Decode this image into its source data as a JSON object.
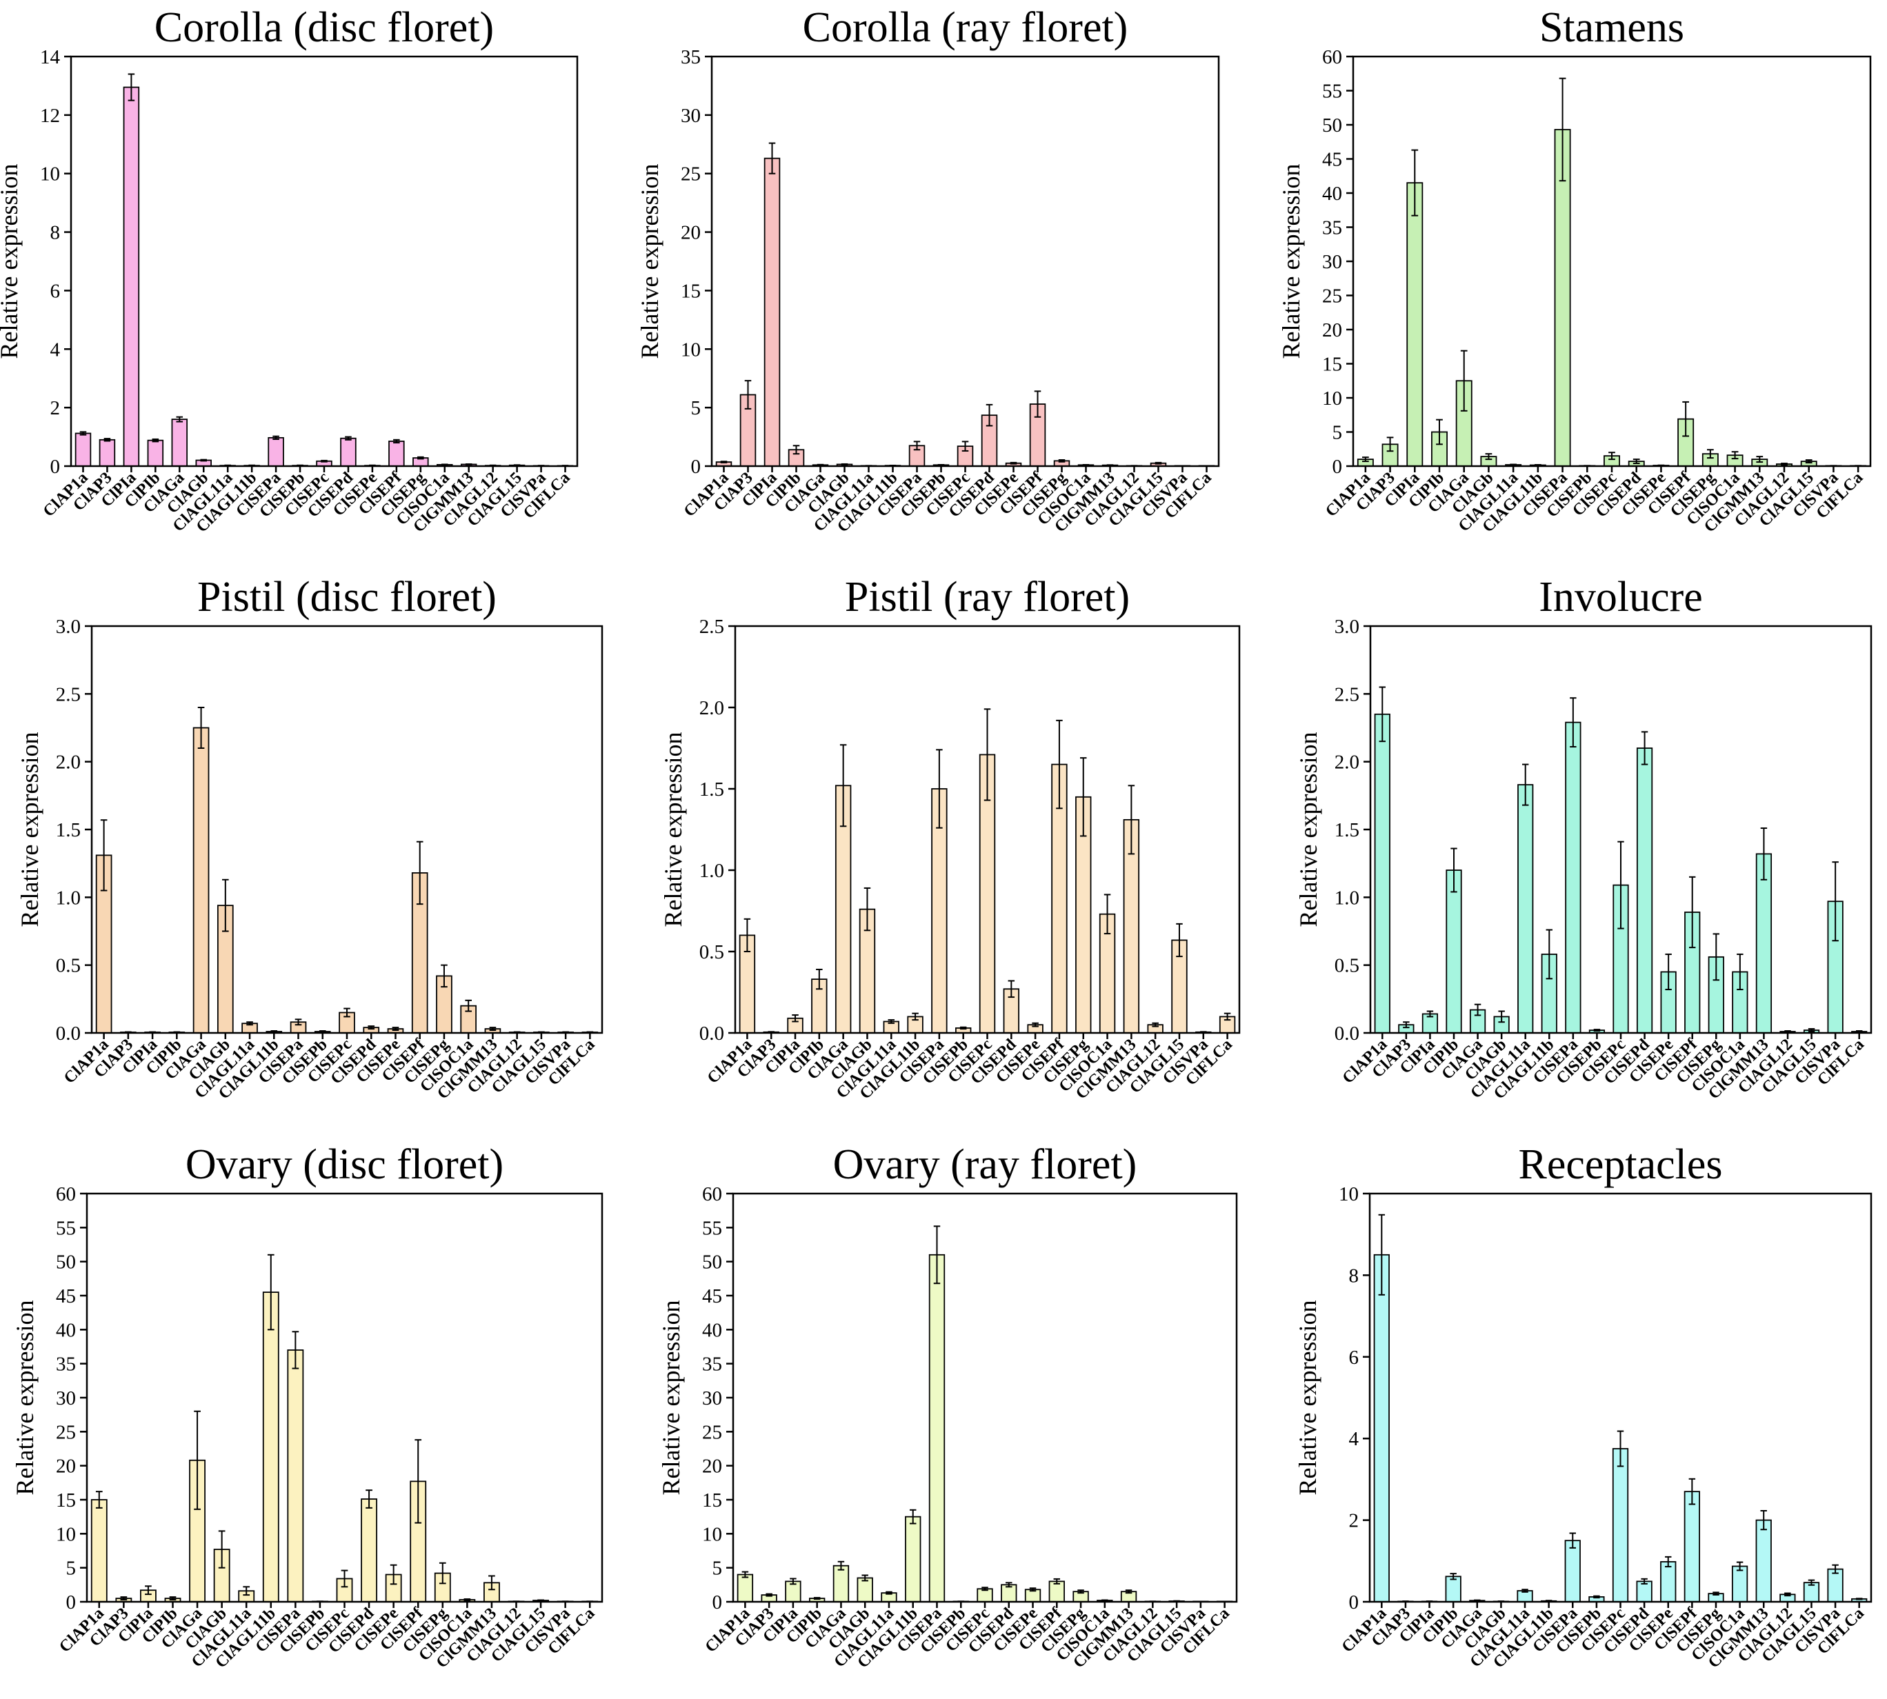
{
  "chart_data": [
    {
      "type": "bar",
      "title": "Corolla (disc floret)",
      "ylabel": "Relative expression",
      "xlabel": "",
      "color": "#f9b3e6",
      "ylim": [
        0,
        14
      ],
      "yticks": [
        0,
        2,
        4,
        6,
        8,
        10,
        12,
        14
      ],
      "categories": [
        "ClAP1a",
        "ClAP3",
        "ClPIa",
        "ClPIb",
        "ClAGa",
        "ClAGb",
        "ClAGL11a",
        "ClAGL11b",
        "ClSEPa",
        "ClSEPb",
        "ClSEPc",
        "ClSEPd",
        "ClSEPe",
        "ClSEPf",
        "ClSEPg",
        "ClSOC1a",
        "ClGMM13",
        "ClAGL12",
        "ClAGL15",
        "ClSVPa",
        "ClFLCa"
      ],
      "values": [
        1.12,
        0.9,
        12.95,
        0.88,
        1.6,
        0.2,
        0.02,
        0.02,
        0.97,
        0.02,
        0.17,
        0.95,
        0.02,
        0.85,
        0.28,
        0.05,
        0.06,
        0.02,
        0.03,
        0.01,
        0.01
      ],
      "errors": [
        0.05,
        0.04,
        0.45,
        0.04,
        0.08,
        0.02,
        0.01,
        0.01,
        0.05,
        0.01,
        0.02,
        0.05,
        0.01,
        0.05,
        0.03,
        0.01,
        0.01,
        0.01,
        0.01,
        0.01,
        0.01
      ]
    },
    {
      "type": "bar",
      "title": "Corolla (ray floret)",
      "ylabel": "Relative expression",
      "xlabel": "",
      "color": "#f8c1c1",
      "ylim": [
        0,
        35
      ],
      "yticks": [
        0,
        5,
        10,
        15,
        20,
        25,
        30,
        35
      ],
      "categories": [
        "ClAP1a",
        "ClAP3",
        "ClPIa",
        "ClPIb",
        "ClAGa",
        "ClAGb",
        "ClAGL11a",
        "ClAGL11b",
        "ClSEPa",
        "ClSEPb",
        "ClSEPc",
        "ClSEPd",
        "ClSEPe",
        "ClSEPf",
        "ClSEPg",
        "ClSOC1a",
        "ClGMM13",
        "ClAGL12",
        "ClAGL15",
        "ClSVPa",
        "ClFLCa"
      ],
      "values": [
        0.35,
        6.1,
        26.3,
        1.4,
        0.1,
        0.15,
        0.03,
        0.05,
        1.75,
        0.1,
        1.7,
        4.35,
        0.25,
        5.3,
        0.45,
        0.1,
        0.08,
        0.03,
        0.25,
        0.02,
        0.02
      ],
      "errors": [
        0.05,
        1.2,
        1.3,
        0.35,
        0.03,
        0.03,
        0.01,
        0.01,
        0.35,
        0.02,
        0.4,
        0.9,
        0.05,
        1.1,
        0.08,
        0.02,
        0.02,
        0.01,
        0.05,
        0.01,
        0.01
      ]
    },
    {
      "type": "bar",
      "title": "Stamens",
      "ylabel": "Relative expression",
      "xlabel": "",
      "color": "#c6f0b4",
      "ylim": [
        0,
        60
      ],
      "yticks": [
        0,
        5,
        10,
        15,
        20,
        25,
        30,
        35,
        40,
        45,
        50,
        55,
        60
      ],
      "categories": [
        "ClAP1a",
        "ClAP3",
        "ClPIa",
        "ClPIb",
        "ClAGa",
        "ClAGb",
        "ClAGL11a",
        "ClAGL11b",
        "ClSEPa",
        "ClSEPb",
        "ClSEPc",
        "ClSEPd",
        "ClSEPe",
        "ClSEPf",
        "ClSEPg",
        "ClSOC1a",
        "ClGMM13",
        "ClAGL12",
        "ClAGL15",
        "ClSVPa",
        "ClFLCa"
      ],
      "values": [
        1.0,
        3.2,
        41.5,
        5.0,
        12.5,
        1.4,
        0.2,
        0.15,
        49.3,
        0.05,
        1.5,
        0.7,
        0.1,
        6.9,
        1.8,
        1.6,
        1.0,
        0.3,
        0.7,
        0.05,
        0.05
      ],
      "errors": [
        0.3,
        1.0,
        4.8,
        1.8,
        4.4,
        0.4,
        0.05,
        0.05,
        7.5,
        0.02,
        0.5,
        0.3,
        0.03,
        2.5,
        0.6,
        0.5,
        0.4,
        0.1,
        0.2,
        0.02,
        0.02
      ]
    },
    {
      "type": "bar",
      "title": "Pistil (disc floret)",
      "ylabel": "Relative expression",
      "xlabel": "",
      "color": "#f8d7b4",
      "ylim": [
        0,
        3.0
      ],
      "yticks": [
        "0.0",
        "0.5",
        "1.0",
        "1.5",
        "2.0",
        "2.5",
        "3.0"
      ],
      "categories": [
        "ClAP1a",
        "ClAP3",
        "ClPIa",
        "ClPIb",
        "ClAGa",
        "ClAGb",
        "ClAGL11a",
        "ClAGL11b",
        "ClSEPa",
        "ClSEPb",
        "ClSEPc",
        "ClSEPd",
        "ClSEPe",
        "ClSEPf",
        "ClSEPg",
        "ClSOC1a",
        "ClGMM13",
        "ClAGL12",
        "ClAGL15",
        "ClSVPa",
        "ClFLCa"
      ],
      "values": [
        1.31,
        0.005,
        0.005,
        0.005,
        2.25,
        0.94,
        0.07,
        0.01,
        0.08,
        0.01,
        0.15,
        0.04,
        0.03,
        1.18,
        0.42,
        0.2,
        0.03,
        0.005,
        0.005,
        0.005,
        0.005
      ],
      "errors": [
        0.26,
        0.002,
        0.002,
        0.002,
        0.15,
        0.19,
        0.01,
        0.005,
        0.02,
        0.005,
        0.03,
        0.01,
        0.01,
        0.23,
        0.08,
        0.04,
        0.01,
        0.002,
        0.002,
        0.002,
        0.002
      ]
    },
    {
      "type": "bar",
      "title": "Pistil (ray floret)",
      "ylabel": "Relative expression",
      "xlabel": "",
      "color": "#fbe4c4",
      "ylim": [
        0,
        2.5
      ],
      "yticks": [
        "0.0",
        "0.5",
        "1.0",
        "1.5",
        "2.0",
        "2.5"
      ],
      "categories": [
        "ClAP1a",
        "ClAP3",
        "ClPIa",
        "ClPIb",
        "ClAGa",
        "ClAGb",
        "ClAGL11a",
        "ClAGL11b",
        "ClSEPa",
        "ClSEPb",
        "ClSEPc",
        "ClSEPd",
        "ClSEPe",
        "ClSEPf",
        "ClSEPg",
        "ClSOC1a",
        "ClGMM13",
        "ClAGL12",
        "ClAGL15",
        "ClSVPa",
        "ClFLCa"
      ],
      "values": [
        0.6,
        0.005,
        0.09,
        0.33,
        1.52,
        0.76,
        0.07,
        0.1,
        1.5,
        0.03,
        1.71,
        0.27,
        0.05,
        1.65,
        1.45,
        0.73,
        1.31,
        0.05,
        0.57,
        0.005,
        0.1
      ],
      "errors": [
        0.1,
        0.002,
        0.02,
        0.06,
        0.25,
        0.13,
        0.01,
        0.02,
        0.24,
        0.005,
        0.28,
        0.05,
        0.01,
        0.27,
        0.24,
        0.12,
        0.21,
        0.01,
        0.1,
        0.002,
        0.02
      ]
    },
    {
      "type": "bar",
      "title": "Involucre",
      "ylabel": "Relative expression",
      "xlabel": "",
      "color": "#a6f5df",
      "ylim": [
        0,
        3.0
      ],
      "yticks": [
        "0.0",
        "0.5",
        "1.0",
        "1.5",
        "2.0",
        "2.5",
        "3.0"
      ],
      "categories": [
        "ClAP1a",
        "ClAP3",
        "ClPIa",
        "ClPIb",
        "ClAGa",
        "ClAGb",
        "ClAGL11a",
        "ClAGL11b",
        "ClSEPa",
        "ClSEPb",
        "ClSEPc",
        "ClSEPd",
        "ClSEPe",
        "ClSEPf",
        "ClSEPg",
        "ClSOC1a",
        "ClGMM13",
        "ClAGL12",
        "ClAGL15",
        "ClSVPa",
        "ClFLCa"
      ],
      "values": [
        2.35,
        0.06,
        0.14,
        1.2,
        0.17,
        0.12,
        1.83,
        0.58,
        2.29,
        0.02,
        1.09,
        2.1,
        0.45,
        0.89,
        0.56,
        0.45,
        1.32,
        0.01,
        0.02,
        0.97,
        0.01
      ],
      "errors": [
        0.2,
        0.02,
        0.02,
        0.16,
        0.04,
        0.04,
        0.15,
        0.18,
        0.18,
        0.005,
        0.32,
        0.12,
        0.13,
        0.26,
        0.17,
        0.13,
        0.19,
        0.005,
        0.01,
        0.29,
        0.005
      ]
    },
    {
      "type": "bar",
      "title": "Ovary (disc floret)",
      "ylabel": "Relative expression",
      "xlabel": "",
      "color": "#fcf2c0",
      "ylim": [
        0,
        60
      ],
      "yticks": [
        0,
        5,
        10,
        15,
        20,
        25,
        30,
        35,
        40,
        45,
        50,
        55,
        60
      ],
      "categories": [
        "ClAP1a",
        "ClAP3",
        "ClPIa",
        "ClPIb",
        "ClAGa",
        "ClAGb",
        "ClAGL11a",
        "ClAGL11b",
        "ClSEPa",
        "ClSEPb",
        "ClSEPc",
        "ClSEPd",
        "ClSEPe",
        "ClSEPf",
        "ClSEPg",
        "ClSOC1a",
        "ClGMM13",
        "ClAGL12",
        "ClAGL15",
        "ClSVPa",
        "ClFLCa"
      ],
      "values": [
        15.0,
        0.5,
        1.7,
        0.5,
        20.8,
        7.7,
        1.6,
        45.5,
        37.0,
        0.05,
        3.4,
        15.1,
        4.0,
        17.7,
        4.2,
        0.3,
        2.8,
        0.05,
        0.2,
        0.05,
        0.05
      ],
      "errors": [
        1.2,
        0.2,
        0.6,
        0.2,
        7.2,
        2.7,
        0.6,
        5.5,
        2.7,
        0.02,
        1.2,
        1.3,
        1.4,
        6.1,
        1.5,
        0.1,
        1.0,
        0.02,
        0.05,
        0.02,
        0.02
      ]
    },
    {
      "type": "bar",
      "title": "Ovary (ray floret)",
      "ylabel": "Relative expression",
      "xlabel": "",
      "color": "#eefac6",
      "ylim": [
        0,
        60
      ],
      "yticks": [
        0,
        5,
        10,
        15,
        20,
        25,
        30,
        35,
        40,
        45,
        50,
        55,
        60
      ],
      "categories": [
        "ClAP1a",
        "ClAP3",
        "ClPIa",
        "ClPIb",
        "ClAGa",
        "ClAGb",
        "ClAGL11a",
        "ClAGL11b",
        "ClSEPa",
        "ClSEPb",
        "ClSEPc",
        "ClSEPd",
        "ClSEPe",
        "ClSEPf",
        "ClSEPg",
        "ClSOC1a",
        "ClGMM13",
        "ClAGL12",
        "ClAGL15",
        "ClSVPa",
        "ClFLCa"
      ],
      "values": [
        4.0,
        1.0,
        3.0,
        0.5,
        5.3,
        3.5,
        1.3,
        12.5,
        51.0,
        0.05,
        1.9,
        2.5,
        1.8,
        3.0,
        1.5,
        0.2,
        1.5,
        0.05,
        0.1,
        0.02,
        0.02
      ],
      "errors": [
        0.4,
        0.15,
        0.4,
        0.1,
        0.6,
        0.4,
        0.15,
        1.0,
        4.2,
        0.02,
        0.2,
        0.3,
        0.2,
        0.35,
        0.2,
        0.05,
        0.2,
        0.02,
        0.03,
        0.01,
        0.01
      ]
    },
    {
      "type": "bar",
      "title": "Receptacles",
      "ylabel": "Relative expression",
      "xlabel": "",
      "color": "#b4f8f6",
      "ylim": [
        0,
        10
      ],
      "yticks": [
        0,
        2,
        4,
        6,
        8,
        10
      ],
      "categories": [
        "ClAP1a",
        "ClAP3",
        "ClPIa",
        "ClPIb",
        "ClAGa",
        "ClAGb",
        "ClAGL11a",
        "ClAGL11b",
        "ClSEPa",
        "ClSEPb",
        "ClSEPc",
        "ClSEPd",
        "ClSEPe",
        "ClSEPf",
        "ClSEPg",
        "ClSOC1a",
        "ClGMM13",
        "ClAGL12",
        "ClAGL15",
        "ClSVPa",
        "ClFLCa"
      ],
      "values": [
        8.5,
        0.01,
        0.01,
        0.62,
        0.03,
        0.01,
        0.27,
        0.02,
        1.5,
        0.12,
        3.75,
        0.5,
        0.98,
        2.7,
        0.2,
        0.87,
        2.0,
        0.18,
        0.47,
        0.8,
        0.07
      ],
      "errors": [
        0.98,
        0.005,
        0.005,
        0.07,
        0.01,
        0.005,
        0.03,
        0.01,
        0.18,
        0.02,
        0.43,
        0.06,
        0.12,
        0.31,
        0.03,
        0.1,
        0.23,
        0.03,
        0.06,
        0.1,
        0.01
      ]
    }
  ]
}
